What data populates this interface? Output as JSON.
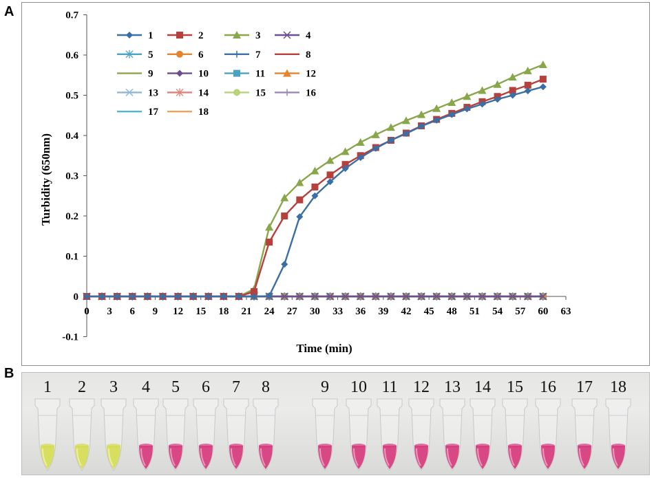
{
  "panels": {
    "a_label": "A",
    "b_label": "B"
  },
  "chart_data": {
    "type": "line",
    "title": "",
    "xlabel": "Time (min)",
    "ylabel": "Turbidity (650nm)",
    "xlim": [
      0,
      63
    ],
    "ylim": [
      -0.1,
      0.7
    ],
    "xticks": [
      0,
      3,
      6,
      9,
      12,
      15,
      18,
      21,
      24,
      27,
      30,
      33,
      36,
      39,
      42,
      45,
      48,
      51,
      54,
      57,
      60,
      63
    ],
    "yticks": [
      -0.1,
      0,
      0.1,
      0.2,
      0.3,
      0.4,
      0.5,
      0.6,
      0.7
    ],
    "ytick_labels": [
      "-0.1",
      "0",
      "0.1",
      "0.2",
      "0.3",
      "0.4",
      "0.5",
      "0.6",
      "0.7"
    ],
    "grid": false,
    "legend_position": "top-left",
    "x": [
      0,
      2,
      4,
      6,
      8,
      10,
      12,
      14,
      16,
      18,
      20,
      22,
      24,
      26,
      28,
      30,
      32,
      34,
      36,
      38,
      40,
      42,
      44,
      46,
      48,
      50,
      52,
      54,
      56,
      58,
      60
    ],
    "series": [
      {
        "name": "1",
        "color": "#3a6ea5",
        "marker": "diamond",
        "values": [
          0,
          0,
          0,
          0,
          0,
          0,
          0,
          0,
          0,
          0,
          0,
          0,
          0.001,
          0.08,
          0.198,
          0.25,
          0.285,
          0.318,
          0.345,
          0.368,
          0.388,
          0.405,
          0.423,
          0.438,
          0.452,
          0.466,
          0.478,
          0.49,
          0.5,
          0.511,
          0.521
        ]
      },
      {
        "name": "2",
        "color": "#b5403c",
        "marker": "square",
        "values": [
          0,
          0,
          0,
          0,
          0,
          0,
          0,
          0,
          0,
          0,
          0,
          0.012,
          0.135,
          0.2,
          0.24,
          0.272,
          0.302,
          0.328,
          0.35,
          0.37,
          0.388,
          0.406,
          0.424,
          0.44,
          0.455,
          0.47,
          0.484,
          0.497,
          0.512,
          0.525,
          0.54
        ]
      },
      {
        "name": "3",
        "color": "#8aa64a",
        "marker": "triangle",
        "values": [
          0,
          0,
          0,
          0,
          0,
          0,
          0,
          0,
          0,
          0,
          0,
          0.018,
          0.172,
          0.245,
          0.283,
          0.312,
          0.338,
          0.36,
          0.383,
          0.402,
          0.42,
          0.437,
          0.452,
          0.467,
          0.482,
          0.497,
          0.512,
          0.527,
          0.545,
          0.561,
          0.576
        ]
      },
      {
        "name": "4",
        "color": "#6e4e8e",
        "marker": "x",
        "values": [
          0,
          0,
          0,
          0,
          0,
          0,
          0,
          0,
          0,
          0,
          0,
          0,
          0,
          0,
          0,
          0,
          0,
          0,
          0,
          0,
          0,
          0,
          0,
          0,
          0,
          0,
          0,
          0,
          0,
          0,
          0
        ]
      },
      {
        "name": "5",
        "color": "#4aa3c2",
        "marker": "star",
        "values": [
          0,
          0,
          0,
          0,
          0,
          0,
          0,
          0,
          0,
          0,
          0,
          0,
          0,
          0,
          0,
          0,
          0,
          0,
          0,
          0,
          0,
          0,
          0,
          0,
          0,
          0,
          0,
          0,
          0,
          0,
          0
        ]
      },
      {
        "name": "6",
        "color": "#e6832e",
        "marker": "circle",
        "values": [
          0,
          0,
          0,
          0,
          0,
          0,
          0,
          0,
          0,
          0,
          0,
          0,
          0,
          0,
          0,
          0,
          0,
          0,
          0,
          0,
          0,
          0,
          0,
          0,
          0,
          0,
          0,
          0,
          0,
          0,
          0
        ]
      },
      {
        "name": "7",
        "color": "#3a6ea5",
        "marker": "plus",
        "values": [
          0,
          0,
          0,
          0,
          0,
          0,
          0,
          0,
          0,
          0,
          0,
          0,
          0,
          0,
          0,
          0,
          0,
          0,
          0,
          0,
          0,
          0,
          0,
          0,
          0,
          0,
          0,
          0,
          0,
          0,
          0
        ]
      },
      {
        "name": "8",
        "color": "#b5403c",
        "marker": "none",
        "values": [
          0,
          0,
          0,
          0,
          0,
          0,
          0,
          0,
          0,
          0,
          0,
          0,
          0,
          0,
          0,
          0,
          0,
          0,
          0,
          0,
          0,
          0,
          0,
          0,
          0,
          0,
          0,
          0,
          0,
          0,
          0
        ]
      },
      {
        "name": "9",
        "color": "#8aa64a",
        "marker": "none",
        "values": [
          0,
          0,
          0,
          0,
          0,
          0,
          0,
          0,
          0,
          0,
          0,
          0,
          0,
          0,
          0,
          0,
          0,
          0,
          0,
          0,
          0,
          0,
          0,
          0,
          0,
          0,
          0,
          0,
          0,
          0,
          0
        ]
      },
      {
        "name": "10",
        "color": "#6e4e8e",
        "marker": "diamond",
        "values": [
          0,
          0,
          0,
          0,
          0,
          0,
          0,
          0,
          0,
          0,
          0,
          0,
          0,
          0,
          0,
          0,
          0,
          0,
          0,
          0,
          0,
          0,
          0,
          0,
          0,
          0,
          0,
          0,
          0,
          0,
          0
        ]
      },
      {
        "name": "11",
        "color": "#4aa3c2",
        "marker": "square",
        "values": [
          0,
          0,
          0,
          0,
          0,
          0,
          0,
          0,
          0,
          0,
          0,
          0,
          0,
          0,
          0,
          0,
          0,
          0,
          0,
          0,
          0,
          0,
          0,
          0,
          0,
          0,
          0,
          0,
          0,
          0,
          0
        ]
      },
      {
        "name": "12",
        "color": "#e6832e",
        "marker": "triangle",
        "values": [
          0,
          0,
          0,
          0,
          0,
          0,
          0,
          0,
          0,
          0,
          0,
          0,
          0,
          0,
          0,
          0,
          0,
          0,
          0,
          0,
          0,
          0,
          0,
          0,
          0,
          0,
          0,
          0,
          0,
          0,
          0
        ]
      },
      {
        "name": "13",
        "color": "#8fb8d8",
        "marker": "x",
        "values": [
          0,
          0,
          0,
          0,
          0,
          0,
          0,
          0,
          0,
          0,
          0,
          0,
          0,
          0,
          0,
          0,
          0,
          0,
          0,
          0,
          0,
          0,
          0,
          0,
          0,
          0,
          0,
          0,
          0,
          0,
          0
        ]
      },
      {
        "name": "14",
        "color": "#e0807a",
        "marker": "star",
        "values": [
          0,
          0,
          0,
          0,
          0,
          0,
          0,
          0,
          0,
          0,
          0,
          0,
          0,
          0,
          0,
          0,
          0,
          0,
          0,
          0,
          0,
          0,
          0,
          0,
          0,
          0,
          0,
          0,
          0,
          0,
          0
        ]
      },
      {
        "name": "15",
        "color": "#b8d47a",
        "marker": "circle",
        "values": [
          0,
          0,
          0,
          0,
          0,
          0,
          0,
          0,
          0,
          0,
          0,
          0,
          0,
          0,
          0,
          0,
          0,
          0,
          0,
          0,
          0,
          0,
          0,
          0,
          0,
          0,
          0,
          0,
          0,
          0,
          0
        ]
      },
      {
        "name": "16",
        "color": "#9a86b8",
        "marker": "plus",
        "values": [
          0,
          0,
          0,
          0,
          0,
          0,
          0,
          0,
          0,
          0,
          0,
          0,
          0,
          0,
          0,
          0,
          0,
          0,
          0,
          0,
          0,
          0,
          0,
          0,
          0,
          0,
          0,
          0,
          0,
          0,
          0
        ]
      },
      {
        "name": "17",
        "color": "#4fb6d6",
        "marker": "none",
        "values": [
          0,
          0,
          0,
          0,
          0,
          0,
          0,
          0,
          0,
          0,
          0,
          0,
          0,
          0,
          0,
          0,
          0,
          0,
          0,
          0,
          0,
          0,
          0,
          0,
          0,
          0,
          0,
          0,
          0,
          0,
          0
        ]
      },
      {
        "name": "18",
        "color": "#f2a05a",
        "marker": "none",
        "values": [
          0,
          0,
          0,
          0,
          0,
          0,
          0,
          0,
          0,
          0,
          0,
          0,
          0,
          0,
          0,
          0,
          0,
          0,
          0,
          0,
          0,
          0,
          0,
          0,
          0,
          0,
          0,
          0,
          0,
          0,
          0
        ]
      }
    ]
  },
  "tubes": [
    {
      "label": "1",
      "color": "yellow"
    },
    {
      "label": "2",
      "color": "yellow"
    },
    {
      "label": "3",
      "color": "yellow"
    },
    {
      "label": "4",
      "color": "pink"
    },
    {
      "label": "5",
      "color": "pink"
    },
    {
      "label": "6",
      "color": "pink"
    },
    {
      "label": "7",
      "color": "pink"
    },
    {
      "label": "8",
      "color": "pink"
    },
    {
      "label": "9",
      "color": "pink"
    },
    {
      "label": "10",
      "color": "pink"
    },
    {
      "label": "11",
      "color": "pink"
    },
    {
      "label": "12",
      "color": "pink"
    },
    {
      "label": "13",
      "color": "pink"
    },
    {
      "label": "14",
      "color": "pink"
    },
    {
      "label": "15",
      "color": "pink"
    },
    {
      "label": "16",
      "color": "pink"
    },
    {
      "label": "17",
      "color": "pink"
    },
    {
      "label": "18",
      "color": "pink"
    }
  ],
  "tube_colors": {
    "yellow": "#d6dc52",
    "pink": "#d63a7c"
  }
}
